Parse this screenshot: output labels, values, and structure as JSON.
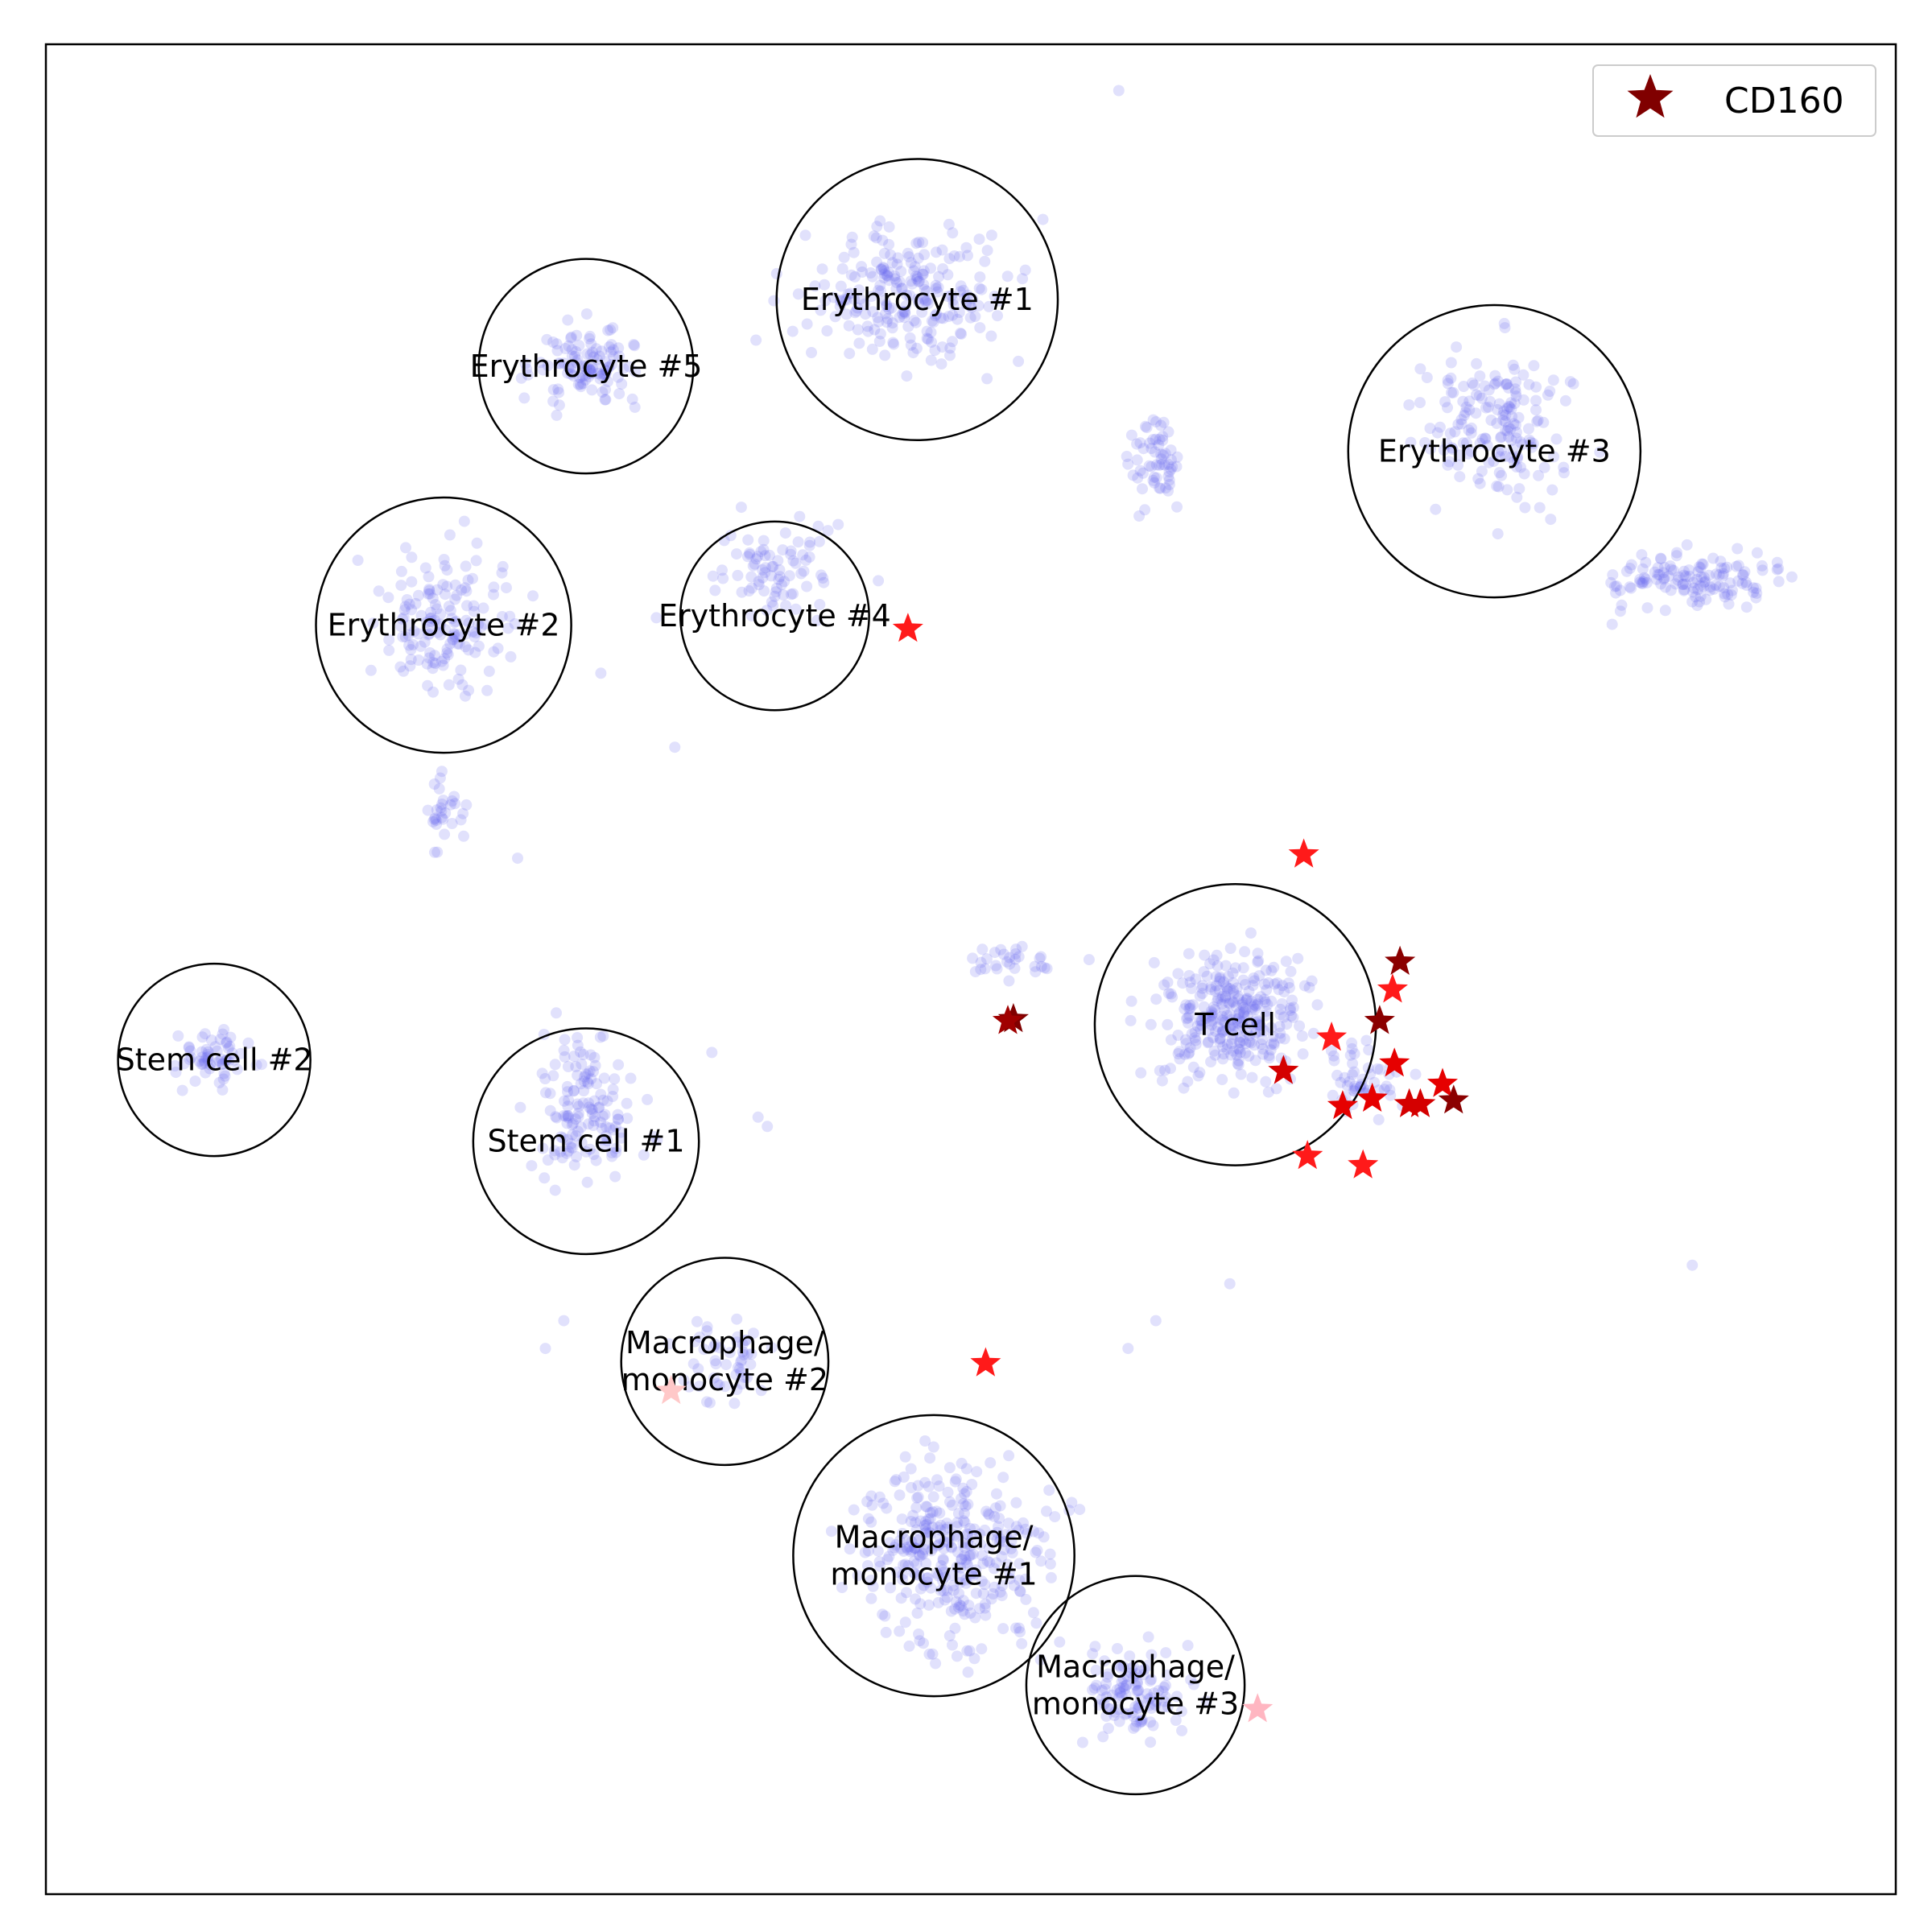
{
  "chart_data": {
    "type": "scatter",
    "title": "",
    "xlabel": "",
    "ylabel": "",
    "xlim": [
      0,
      100
    ],
    "ylim": [
      0,
      100
    ],
    "grid": false,
    "legend": {
      "placement": "top-right",
      "entries": [
        {
          "name": "CD160",
          "marker": "star",
          "color": "#800000"
        }
      ]
    },
    "colors": {
      "background_points": "#6a6af0",
      "star_dark": "#800000",
      "star_mid": "#c80000",
      "star_red": "#ff1a1a",
      "star_pink": "#ffb6c1",
      "circle_stroke": "#000000"
    },
    "clusters": [
      {
        "label": [
          "Erythrocyte #1"
        ],
        "x": 47.1,
        "y": 86.2,
        "r": 7.6
      },
      {
        "label": [
          "Erythrocyte #5"
        ],
        "x": 29.2,
        "y": 82.6,
        "r": 5.8
      },
      {
        "label": [
          "Erythrocyte #3"
        ],
        "x": 78.3,
        "y": 78.0,
        "r": 7.9
      },
      {
        "label": [
          "Erythrocyte #2"
        ],
        "x": 21.5,
        "y": 68.6,
        "r": 6.9
      },
      {
        "label": [
          "Erythrocyte #4"
        ],
        "x": 39.4,
        "y": 69.1,
        "r": 5.1
      },
      {
        "label": [
          "T cell"
        ],
        "x": 64.3,
        "y": 47.0,
        "r": 7.6
      },
      {
        "label": [
          "Stem cell #2"
        ],
        "x": 9.1,
        "y": 45.1,
        "r": 5.2
      },
      {
        "label": [
          "Stem cell #1"
        ],
        "x": 29.2,
        "y": 40.7,
        "r": 6.1
      },
      {
        "label": [
          "Macrophage/",
          "monocyte #2"
        ],
        "x": 36.7,
        "y": 28.8,
        "r": 5.6
      },
      {
        "label": [
          "Macrophage/",
          "monocyte #1"
        ],
        "x": 48.0,
        "y": 18.3,
        "r": 7.6
      },
      {
        "label": [
          "Macrophage/",
          "monocyte #3"
        ],
        "x": 58.9,
        "y": 11.3,
        "r": 5.9
      }
    ],
    "background_regions": [
      {
        "x": 47.1,
        "y": 86.2,
        "sx": 7.5,
        "sy": 4.5,
        "n": 230
      },
      {
        "x": 29.2,
        "y": 82.6,
        "sx": 4.0,
        "sy": 3.0,
        "n": 110
      },
      {
        "x": 78.3,
        "y": 79.5,
        "sx": 5.0,
        "sy": 5.0,
        "n": 170
      },
      {
        "x": 89.5,
        "y": 71.0,
        "sx": 6.0,
        "sy": 1.8,
        "n": 130
      },
      {
        "x": 21.5,
        "y": 68.6,
        "sx": 4.5,
        "sy": 5.0,
        "n": 150
      },
      {
        "x": 21.5,
        "y": 58.5,
        "sx": 1.5,
        "sy": 2.5,
        "n": 30
      },
      {
        "x": 39.4,
        "y": 71.5,
        "sx": 4.5,
        "sy": 3.0,
        "n": 80
      },
      {
        "x": 60.0,
        "y": 77.5,
        "sx": 1.6,
        "sy": 3.2,
        "n": 60
      },
      {
        "x": 64.3,
        "y": 47.5,
        "sx": 5.0,
        "sy": 4.2,
        "n": 300
      },
      {
        "x": 71.5,
        "y": 44.0,
        "sx": 2.5,
        "sy": 3.0,
        "n": 50
      },
      {
        "x": 52.5,
        "y": 50.5,
        "sx": 3.5,
        "sy": 1.2,
        "n": 30
      },
      {
        "x": 9.1,
        "y": 45.1,
        "sx": 3.0,
        "sy": 1.8,
        "n": 60
      },
      {
        "x": 29.2,
        "y": 42.5,
        "sx": 3.5,
        "sy": 5.0,
        "n": 140
      },
      {
        "x": 36.7,
        "y": 28.8,
        "sx": 3.0,
        "sy": 3.0,
        "n": 50
      },
      {
        "x": 49.0,
        "y": 18.5,
        "sx": 6.0,
        "sy": 6.5,
        "n": 330
      },
      {
        "x": 58.9,
        "y": 10.8,
        "sx": 3.8,
        "sy": 3.2,
        "n": 110
      }
    ],
    "extra_points": [
      {
        "x": 34.0,
        "y": 62.0
      },
      {
        "x": 25.5,
        "y": 56.0
      },
      {
        "x": 64.0,
        "y": 33.0
      },
      {
        "x": 89.0,
        "y": 34.0
      },
      {
        "x": 60.0,
        "y": 31.0
      },
      {
        "x": 58.5,
        "y": 29.5
      },
      {
        "x": 36.0,
        "y": 45.5
      },
      {
        "x": 38.5,
        "y": 42.0
      },
      {
        "x": 39.0,
        "y": 41.5
      },
      {
        "x": 28.0,
        "y": 31.0
      },
      {
        "x": 27.0,
        "y": 29.5
      },
      {
        "x": 58.0,
        "y": 97.5
      },
      {
        "x": 33.0,
        "y": 69.0
      },
      {
        "x": 30.0,
        "y": 66.0
      },
      {
        "x": 45.0,
        "y": 71.0
      }
    ],
    "series": [
      {
        "name": "CD160",
        "marker": "star",
        "points": [
          {
            "x": 68.0,
            "y": 56.2,
            "c": "#ff1a1a"
          },
          {
            "x": 73.2,
            "y": 50.4,
            "c": "#8b0000"
          },
          {
            "x": 72.8,
            "y": 48.9,
            "c": "#ff1a1a"
          },
          {
            "x": 72.1,
            "y": 47.2,
            "c": "#8b0000"
          },
          {
            "x": 69.5,
            "y": 46.3,
            "c": "#ff1a1a"
          },
          {
            "x": 72.9,
            "y": 44.9,
            "c": "#e60000"
          },
          {
            "x": 66.9,
            "y": 44.5,
            "c": "#d40000"
          },
          {
            "x": 75.5,
            "y": 43.8,
            "c": "#e60000"
          },
          {
            "x": 71.7,
            "y": 43.0,
            "c": "#e60000"
          },
          {
            "x": 70.1,
            "y": 42.6,
            "c": "#e60000"
          },
          {
            "x": 73.7,
            "y": 42.7,
            "c": "#d40000"
          },
          {
            "x": 74.3,
            "y": 42.7,
            "c": "#d40000"
          },
          {
            "x": 76.1,
            "y": 42.9,
            "c": "#8b0000"
          },
          {
            "x": 68.2,
            "y": 39.9,
            "c": "#ff1a1a"
          },
          {
            "x": 71.2,
            "y": 39.4,
            "c": "#ff1a1a"
          },
          {
            "x": 52.3,
            "y": 47.3,
            "c": "#800000"
          },
          {
            "x": 52.0,
            "y": 47.2,
            "c": "#a00000"
          },
          {
            "x": 46.6,
            "y": 68.4,
            "c": "#ff1a1a"
          },
          {
            "x": 50.8,
            "y": 28.7,
            "c": "#ff1a1a"
          },
          {
            "x": 65.5,
            "y": 10.0,
            "c": "#ffb6c1"
          },
          {
            "x": 33.8,
            "y": 27.2,
            "c": "#ffc8c8"
          }
        ]
      }
    ]
  }
}
